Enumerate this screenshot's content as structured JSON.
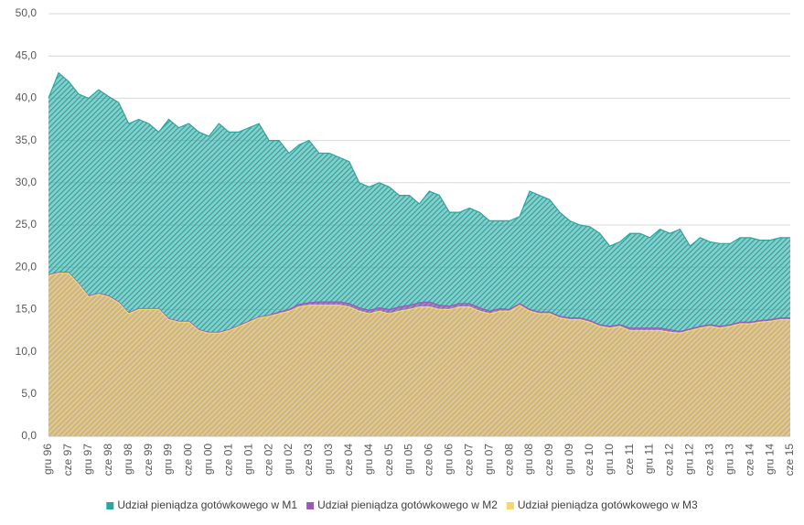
{
  "chart_data": {
    "type": "area",
    "categories": [
      "gru 96",
      null,
      "cze 97",
      null,
      "gru 97",
      null,
      "cze 98",
      null,
      "gru 98",
      null,
      "cze 99",
      null,
      "gru 99",
      null,
      "cze 00",
      null,
      "gru 00",
      null,
      "cze 01",
      null,
      "gru 01",
      null,
      "cze 02",
      null,
      "gru 02",
      null,
      "cze 03",
      null,
      "gru 03",
      null,
      "cze 04",
      null,
      "gru 04",
      null,
      "cze 05",
      null,
      "gru 05",
      null,
      "cze 06",
      null,
      "gru 06",
      null,
      "cze 07",
      null,
      "gru 07",
      null,
      "cze 08",
      null,
      "gru 08",
      null,
      "cze 09",
      null,
      "gru 09",
      null,
      "cze 10",
      null,
      "gru 10",
      null,
      "cze 11",
      null,
      "gru 11",
      null,
      "cze 12",
      null,
      "gru 12",
      null,
      "cze 13",
      null,
      "gru 13",
      null,
      "cze 14",
      null,
      "gru 14",
      null,
      "cze 15"
    ],
    "series": [
      {
        "name": "Udział pieniądza gotówkowego w M1",
        "color": "#2aa6a0",
        "values": [
          40.0,
          43.0,
          42.0,
          40.5,
          40.0,
          41.0,
          40.2,
          39.5,
          37.0,
          37.5,
          37.0,
          36.0,
          37.5,
          36.5,
          37.0,
          36.0,
          35.5,
          37.0,
          36.0,
          36.0,
          36.5,
          37.0,
          35.0,
          35.0,
          33.5,
          34.5,
          35.0,
          33.5,
          33.5,
          33.0,
          32.5,
          30.0,
          29.5,
          30.0,
          29.5,
          28.5,
          28.5,
          27.5,
          29.0,
          28.5,
          26.5,
          26.5,
          27.0,
          26.5,
          25.5,
          25.5,
          25.5,
          26.0,
          29.0,
          28.5,
          28.0,
          26.5,
          25.5,
          25.0,
          24.8,
          24.0,
          22.5,
          23.0,
          24.0,
          24.0,
          23.5,
          24.5,
          24.0,
          24.5,
          22.5,
          23.5,
          23.0,
          22.8,
          22.8,
          23.5,
          23.5,
          23.2,
          23.2,
          23.5,
          23.5
        ]
      },
      {
        "name": "Udział pieniądza gotówkowego w M2",
        "color": "#9b59b6",
        "values": [
          19.1,
          19.4,
          19.4,
          18.1,
          16.6,
          16.9,
          16.6,
          15.9,
          14.6,
          15.1,
          15.1,
          15.1,
          13.9,
          13.6,
          13.6,
          12.6,
          12.3,
          12.3,
          12.6,
          13.1,
          13.6,
          14.1,
          14.3,
          14.7,
          15.0,
          15.6,
          15.8,
          15.9,
          15.9,
          15.9,
          15.7,
          15.2,
          14.9,
          15.2,
          15.0,
          15.3,
          15.5,
          15.8,
          15.9,
          15.5,
          15.4,
          15.7,
          15.7,
          15.2,
          14.8,
          15.1,
          15.0,
          15.7,
          15.0,
          14.7,
          14.7,
          14.2,
          14.0,
          14.0,
          13.7,
          13.2,
          13.0,
          13.2,
          12.8,
          12.8,
          12.8,
          12.8,
          12.6,
          12.4,
          12.7,
          13.0,
          13.2,
          13.0,
          13.2,
          13.5,
          13.5,
          13.7,
          13.8,
          14.0,
          14.0
        ]
      },
      {
        "name": "Udział pieniądza gotówkowego w M3",
        "color": "#f5d76e",
        "values": [
          19.0,
          19.3,
          19.3,
          18.0,
          16.5,
          16.8,
          16.5,
          15.8,
          14.5,
          15.0,
          15.0,
          15.0,
          13.8,
          13.5,
          13.5,
          12.5,
          12.2,
          12.2,
          12.5,
          13.0,
          13.5,
          14.0,
          14.2,
          14.5,
          14.8,
          15.3,
          15.5,
          15.5,
          15.5,
          15.5,
          15.3,
          14.8,
          14.5,
          14.8,
          14.5,
          14.8,
          15.0,
          15.3,
          15.3,
          15.0,
          15.0,
          15.3,
          15.3,
          14.8,
          14.5,
          14.8,
          14.8,
          15.5,
          14.8,
          14.5,
          14.5,
          14.0,
          13.8,
          13.8,
          13.5,
          13.0,
          12.8,
          13.0,
          12.5,
          12.5,
          12.5,
          12.5,
          12.3,
          12.2,
          12.5,
          12.8,
          13.0,
          12.8,
          13.0,
          13.3,
          13.3,
          13.5,
          13.6,
          13.8,
          13.8
        ]
      }
    ],
    "ylim": [
      0,
      50
    ],
    "yticks": [
      {
        "value": 0,
        "label": "0,0"
      },
      {
        "value": 5,
        "label": "5,0"
      },
      {
        "value": 10,
        "label": "10,0"
      },
      {
        "value": 15,
        "label": "15,0"
      },
      {
        "value": 20,
        "label": "20,0"
      },
      {
        "value": 25,
        "label": "25,0"
      },
      {
        "value": 30,
        "label": "30,0"
      },
      {
        "value": 35,
        "label": "35,0"
      },
      {
        "value": 40,
        "label": "40,0"
      },
      {
        "value": 45,
        "label": "45,0"
      },
      {
        "value": 50,
        "label": "50,0"
      }
    ],
    "grid": true,
    "legend": "bottom",
    "fill_pattern": "hatch"
  }
}
